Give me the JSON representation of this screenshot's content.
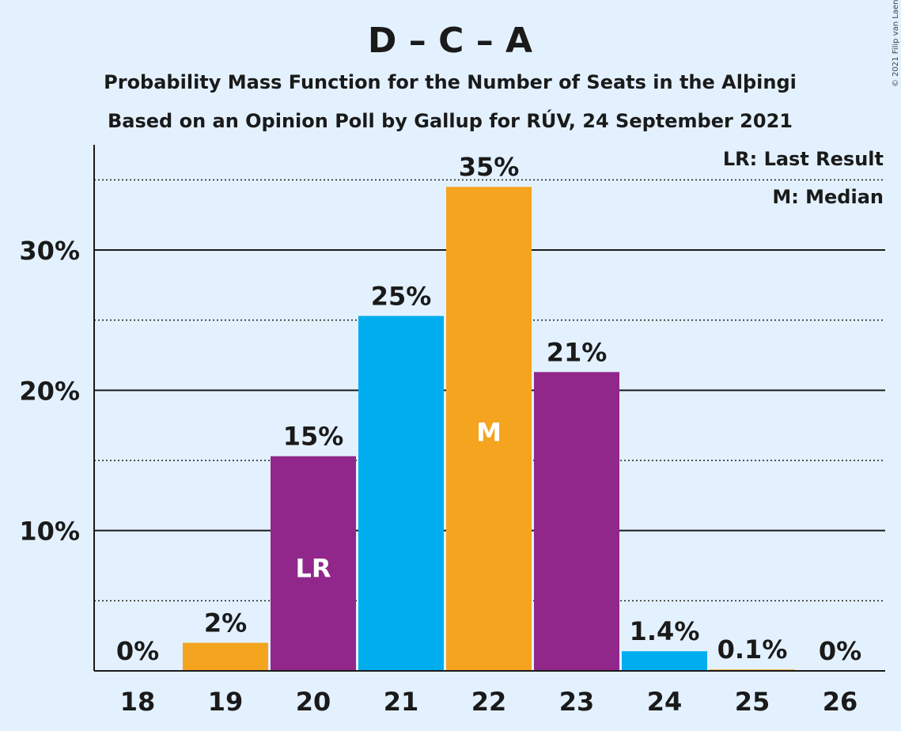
{
  "chart_data": {
    "type": "bar",
    "title": "D – C – A",
    "subtitle_lines": [
      "Probability Mass Function for the Number of Seats in the Alþingi",
      "Based on an Opinion Poll by Gallup for RÚV, 24 September 2021"
    ],
    "categories": [
      "18",
      "19",
      "20",
      "21",
      "22",
      "23",
      "24",
      "25",
      "26"
    ],
    "values": [
      0,
      2.0,
      15.3,
      25.3,
      34.5,
      21.3,
      1.4,
      0.1,
      0
    ],
    "data_labels": [
      "0%",
      "2%",
      "15%",
      "25%",
      "35%",
      "21%",
      "1.4%",
      "0.1%",
      "0%"
    ],
    "bar_colors": [
      "#f4a41f",
      "#f4a41f",
      "#91278b",
      "#00aeef",
      "#f4a41f",
      "#91278b",
      "#00aeef",
      "#f4a41f",
      "#91278b"
    ],
    "in_bar_labels": {
      "20": "LR",
      "22": "M"
    },
    "ylim": [
      0,
      37.5
    ],
    "yticks": [
      10,
      20,
      30
    ],
    "ytick_labels": [
      "10%",
      "20%",
      "30%"
    ],
    "minor_gridlines": [
      5,
      15,
      25,
      35
    ],
    "grid": true,
    "legend": {
      "placement": "top-right",
      "entries": [
        "LR: Last Result",
        "M: Median"
      ]
    },
    "xlabel": "",
    "ylabel": ""
  },
  "copyright": "© 2021 Filip van Laenen"
}
